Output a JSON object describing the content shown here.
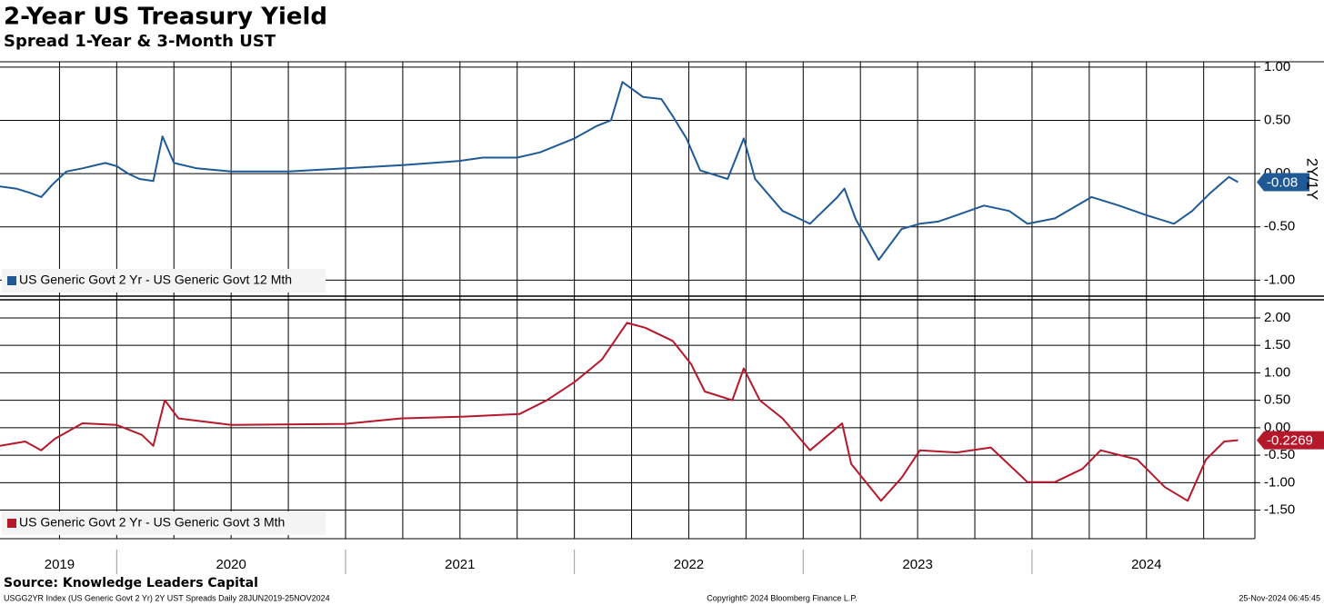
{
  "chart_data": [
    {
      "type": "line",
      "title": "2-Year US Treasury Yield",
      "subtitle": "Spread 1-Year & 3-Month UST",
      "axis_label": "2Y/1Y",
      "ylim": [
        -1.15,
        1.05
      ],
      "yticks": [
        {
          "value": 1,
          "label": "1.00"
        },
        {
          "value": 0.5,
          "label": "0.50"
        },
        {
          "value": 0,
          "label": "0.00"
        },
        {
          "value": -0.5,
          "label": "-0.50"
        },
        {
          "value": -1,
          "label": "-1.00"
        }
      ],
      "x": [
        2019.49,
        2019.56,
        2019.62,
        2019.67,
        2019.72,
        2019.78,
        2019.85,
        2019.95,
        2020.0,
        2020.05,
        2020.1,
        2020.16,
        2020.2,
        2020.25,
        2020.35,
        2020.5,
        2020.75,
        2021.0,
        2021.25,
        2021.5,
        2021.6,
        2021.75,
        2021.85,
        2022.0,
        2022.1,
        2022.16,
        2022.21,
        2022.3,
        2022.38,
        2022.43,
        2022.49,
        2022.55,
        2022.67,
        2022.74,
        2022.79,
        2022.91,
        2023.03,
        2023.15,
        2023.18,
        2023.23,
        2023.33,
        2023.43,
        2023.51,
        2023.59,
        2023.67,
        2023.79,
        2023.9,
        2023.98,
        2024.1,
        2024.26,
        2024.38,
        2024.5,
        2024.62,
        2024.7,
        2024.78,
        2024.86,
        2024.9
      ],
      "series": [
        {
          "name": "US Generic Govt 2 Yr - US Generic Govt 12 Mth",
          "color": "#1f5a96",
          "values": [
            -0.12,
            -0.14,
            -0.18,
            -0.22,
            -0.1,
            0.02,
            0.05,
            0.1,
            0.07,
            0.0,
            -0.05,
            -0.07,
            0.35,
            0.1,
            0.05,
            0.02,
            0.02,
            0.05,
            0.08,
            0.12,
            0.15,
            0.15,
            0.2,
            0.33,
            0.45,
            0.5,
            0.86,
            0.72,
            0.7,
            0.54,
            0.33,
            0.03,
            -0.05,
            0.33,
            -0.05,
            -0.35,
            -0.47,
            -0.22,
            -0.14,
            -0.43,
            -0.81,
            -0.52,
            -0.47,
            -0.45,
            -0.39,
            -0.3,
            -0.35,
            -0.47,
            -0.42,
            -0.22,
            -0.3,
            -0.39,
            -0.47,
            -0.35,
            -0.18,
            -0.03,
            -0.08
          ]
        }
      ]
    },
    {
      "type": "line",
      "ylim": [
        -2.02,
        2.33
      ],
      "yticks": [
        {
          "value": 2,
          "label": "2.00"
        },
        {
          "value": 1.5,
          "label": "1.50"
        },
        {
          "value": 1,
          "label": "1.00"
        },
        {
          "value": 0.5,
          "label": "0.50"
        },
        {
          "value": 0,
          "label": "0.00"
        },
        {
          "value": -0.5,
          "label": "-0.50"
        },
        {
          "value": -1,
          "label": "-1.00"
        },
        {
          "value": -1.5,
          "label": "-1.50"
        }
      ],
      "xlim": [
        2019.49,
        2024.95
      ],
      "xticks": [
        {
          "value": 2019.75,
          "label": "2019"
        },
        {
          "value": 2020.5,
          "label": "2020"
        },
        {
          "value": 2021.5,
          "label": "2021"
        },
        {
          "value": 2022.5,
          "label": "2022"
        },
        {
          "value": 2023.5,
          "label": "2023"
        },
        {
          "value": 2024.5,
          "label": "2024"
        }
      ],
      "xminor": [
        2019.75,
        2020,
        2020.25,
        2020.5,
        2020.75,
        2021,
        2021.25,
        2021.5,
        2021.75,
        2022,
        2022.25,
        2022.5,
        2022.75,
        2023,
        2023.25,
        2023.5,
        2023.75,
        2024,
        2024.25,
        2024.5,
        2024.75
      ],
      "x": [
        2019.49,
        2019.6,
        2019.67,
        2019.73,
        2019.85,
        2020.0,
        2020.11,
        2020.16,
        2020.21,
        2020.27,
        2020.5,
        2021.0,
        2021.24,
        2021.5,
        2021.76,
        2021.88,
        2022.0,
        2022.12,
        2022.23,
        2022.31,
        2022.43,
        2022.51,
        2022.57,
        2022.69,
        2022.74,
        2022.81,
        2022.91,
        2023.03,
        2023.17,
        2023.21,
        2023.34,
        2023.43,
        2023.51,
        2023.67,
        2023.82,
        2023.98,
        2024.1,
        2024.22,
        2024.3,
        2024.46,
        2024.58,
        2024.68,
        2024.76,
        2024.84,
        2024.9
      ],
      "series": [
        {
          "name": "US Generic Govt 2 Yr - US Generic Govt 3 Mth",
          "color": "#b5182b",
          "values": [
            -0.33,
            -0.25,
            -0.41,
            -0.2,
            0.08,
            0.05,
            -0.13,
            -0.33,
            0.5,
            0.17,
            0.05,
            0.07,
            0.17,
            0.2,
            0.25,
            0.5,
            0.83,
            1.24,
            1.91,
            1.82,
            1.58,
            1.16,
            0.66,
            0.5,
            1.08,
            0.5,
            0.17,
            -0.41,
            0.08,
            -0.66,
            -1.33,
            -0.91,
            -0.41,
            -0.45,
            -0.36,
            -0.99,
            -0.99,
            -0.75,
            -0.41,
            -0.58,
            -1.08,
            -1.33,
            -0.58,
            -0.25,
            -0.2269
          ]
        }
      ]
    }
  ],
  "source": "Source: Knowledge Leaders Capital",
  "footer_left": "USGG2YR Index (US Generic Govt 2 Yr) 2Y UST Spreads  Daily 28JUN2019-25NOV2024",
  "footer_center": "Copyright© 2024 Bloomberg Finance L.P.",
  "footer_right": "25-Nov-2024 06:45:45"
}
